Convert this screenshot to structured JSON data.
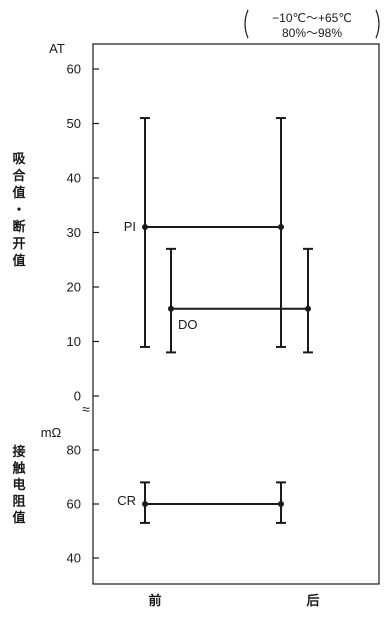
{
  "chart_data": {
    "type": "range",
    "condition": {
      "line1": "−10℃〜+65℃",
      "line2": "80%〜98%"
    },
    "x_categories": [
      "前",
      "后"
    ],
    "upper_panel": {
      "unit": "AT",
      "ylabel": "吸合值・断开值",
      "ylim": [
        0,
        60
      ],
      "yticks": [
        0,
        10,
        20,
        30,
        40,
        50,
        60
      ],
      "series": [
        {
          "name": "PI",
          "points": [
            {
              "x": "前",
              "min": 9,
              "max": 51,
              "value": 31
            },
            {
              "x": "后",
              "min": 9,
              "max": 51,
              "value": 31
            }
          ]
        },
        {
          "name": "DO",
          "points": [
            {
              "x": "前",
              "min": 8,
              "max": 27,
              "value": 16
            },
            {
              "x": "后",
              "min": 8,
              "max": 27,
              "value": 16
            }
          ]
        }
      ]
    },
    "lower_panel": {
      "unit": "mΩ",
      "ylabel": "接触电阻值",
      "ylim": [
        40,
        80
      ],
      "yticks": [
        40,
        60,
        80
      ],
      "series": [
        {
          "name": "CR",
          "points": [
            {
              "x": "前",
              "min": 53,
              "max": 68,
              "value": 60
            },
            {
              "x": "后",
              "min": 53,
              "max": 68,
              "value": 60
            }
          ]
        }
      ]
    },
    "axis_break": "≈"
  }
}
